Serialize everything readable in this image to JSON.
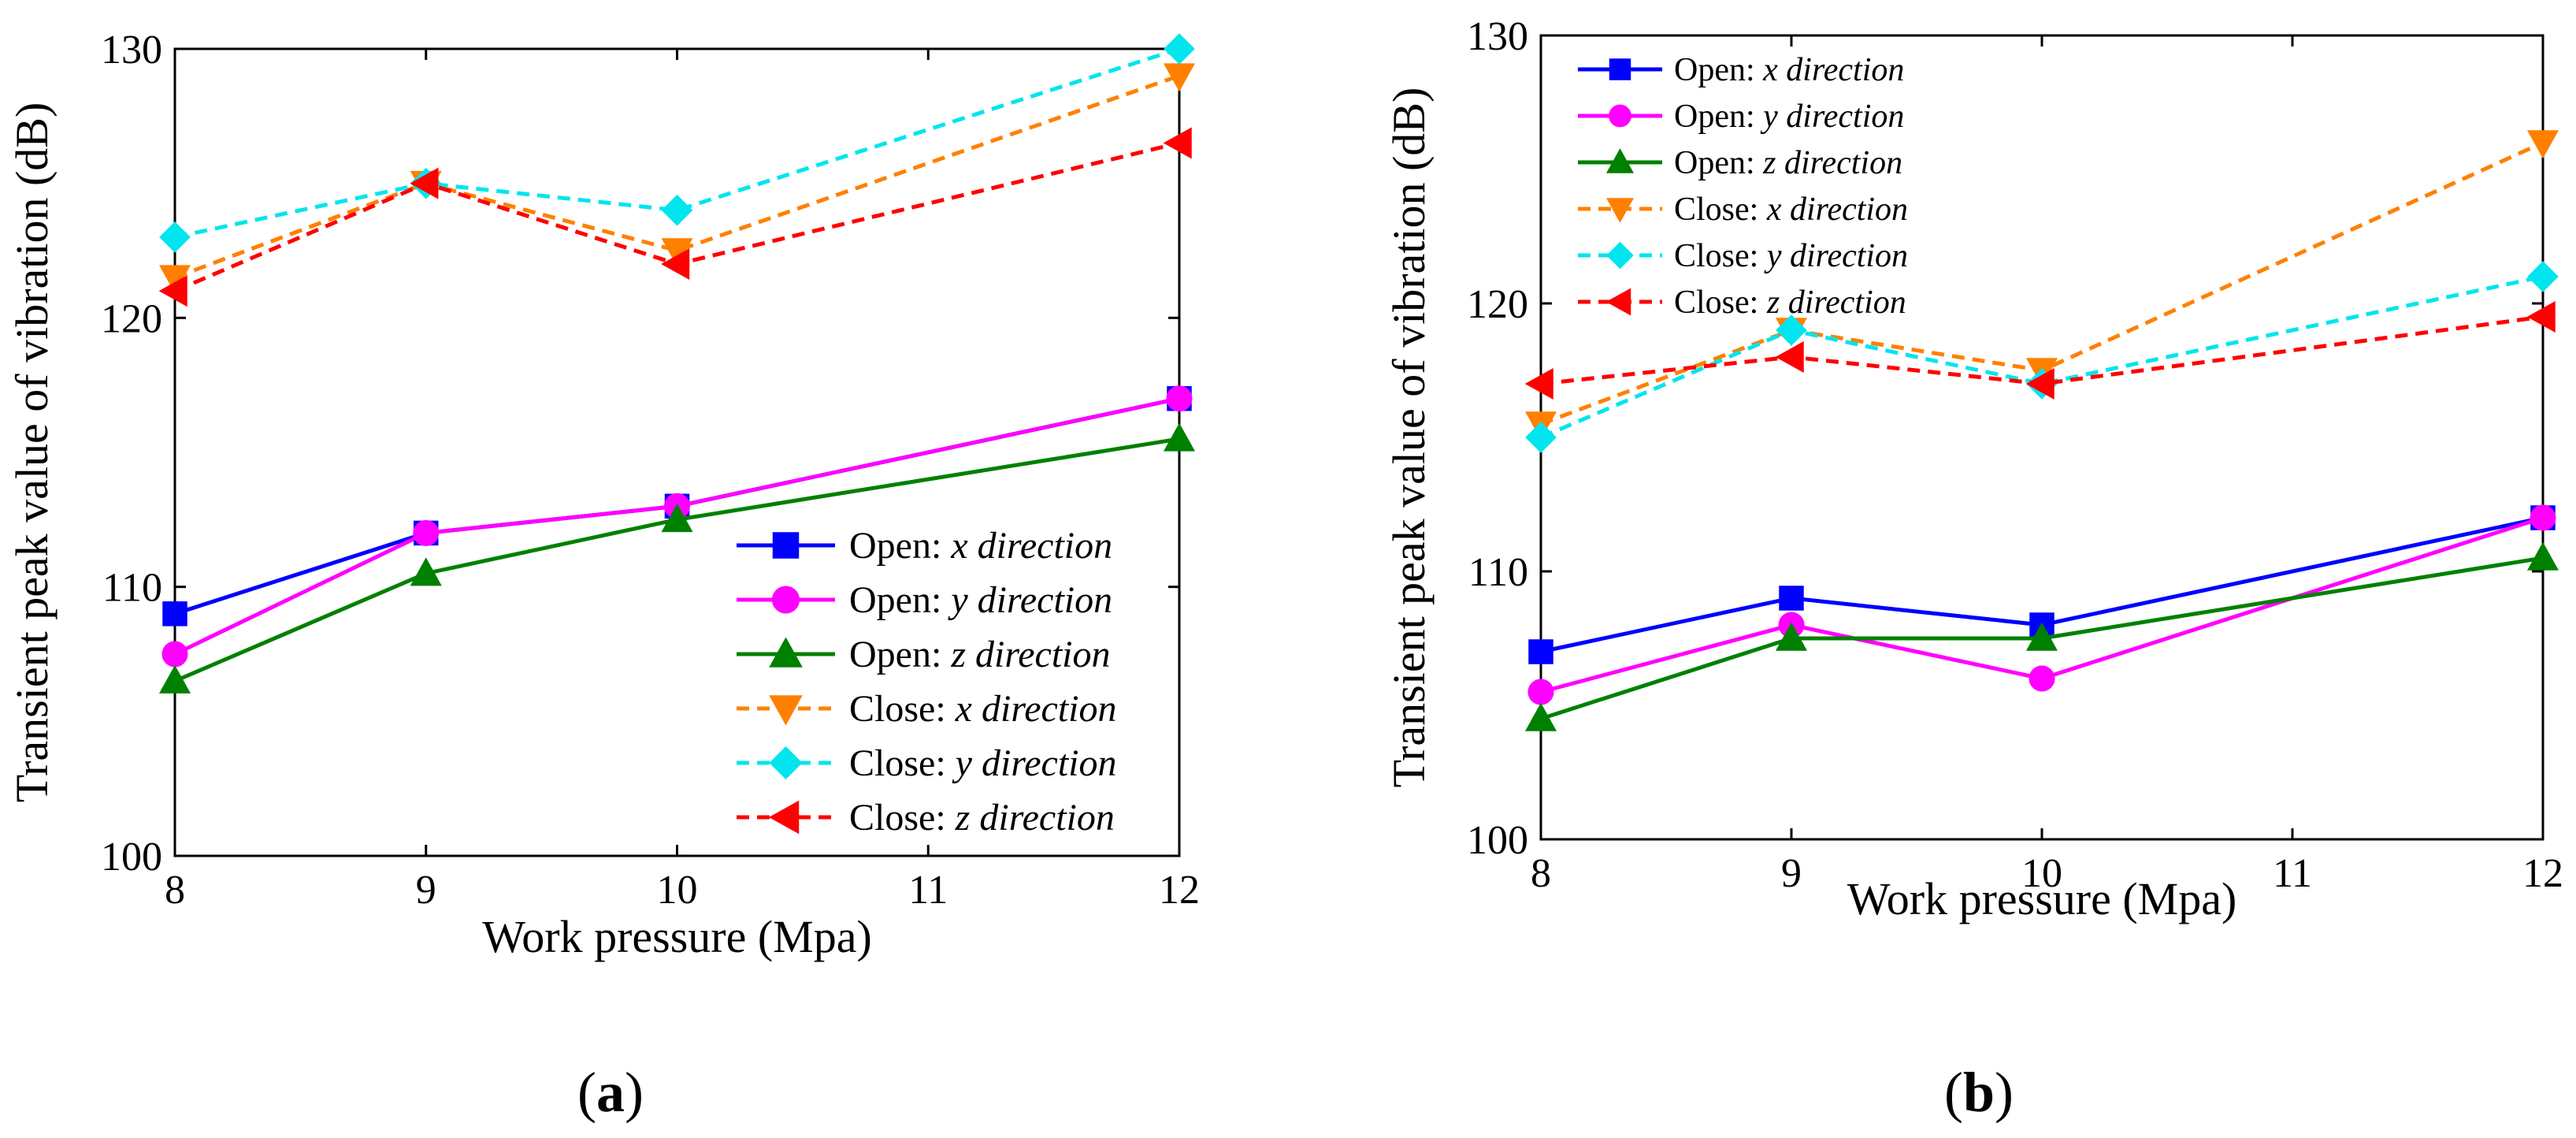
{
  "chart_data": [
    {
      "type": "line",
      "panel_label": "(a)",
      "panel_letter": "a",
      "xlabel": "Work pressure (Mpa)",
      "ylabel": "Transient peak value of vibration  (dB)",
      "xlim": [
        8,
        12
      ],
      "ylim": [
        100,
        130
      ],
      "xticks": [
        8,
        9,
        10,
        11,
        12
      ],
      "yticks": [
        100,
        110,
        120,
        130
      ],
      "x": [
        8,
        9,
        10,
        12
      ],
      "legend_position": "lower-right",
      "series": [
        {
          "name": "Open: x direction",
          "prefix": "Open:",
          "dir": "x direction",
          "color": "#0000ff",
          "dash": "solid",
          "marker": "square",
          "values": [
            109,
            112,
            113,
            117
          ]
        },
        {
          "name": "Open: y direction",
          "prefix": "Open:",
          "dir": "y direction",
          "color": "#ff00ff",
          "dash": "solid",
          "marker": "circle",
          "values": [
            107.5,
            112,
            113,
            117
          ]
        },
        {
          "name": "Open: z direction",
          "prefix": "Open:",
          "dir": "z direction",
          "color": "#008000",
          "dash": "solid",
          "marker": "triangle-up",
          "values": [
            106.5,
            110.5,
            112.5,
            115.5
          ]
        },
        {
          "name": "Close: x direction",
          "prefix": "Close:",
          "dir": "x direction",
          "color": "#ff8000",
          "dash": "dashed",
          "marker": "triangle-down",
          "values": [
            121.5,
            125,
            122.5,
            129
          ]
        },
        {
          "name": "Close: y direction",
          "prefix": "Close:",
          "dir": "y direction",
          "color": "#00e5ee",
          "dash": "dashed",
          "marker": "diamond",
          "values": [
            123,
            125,
            124,
            130
          ]
        },
        {
          "name": "Close: z direction",
          "prefix": "Close:",
          "dir": "z direction",
          "color": "#ff0000",
          "dash": "dashed",
          "marker": "triangle-left",
          "values": [
            121,
            125,
            122,
            126.5
          ]
        }
      ]
    },
    {
      "type": "line",
      "panel_label": "(b)",
      "panel_letter": "b",
      "xlabel": "Work pressure (Mpa)",
      "ylabel": "Transient peak value of vibration  (dB)",
      "xlim": [
        8,
        12
      ],
      "ylim": [
        100,
        130
      ],
      "xticks": [
        8,
        9,
        10,
        11,
        12
      ],
      "yticks": [
        100,
        110,
        120,
        130
      ],
      "x": [
        8,
        9,
        10,
        12
      ],
      "legend_position": "top-left",
      "series": [
        {
          "name": "Open: x direction",
          "prefix": "Open:",
          "dir": "x direction",
          "color": "#0000ff",
          "dash": "solid",
          "marker": "square",
          "values": [
            107,
            109,
            108,
            112
          ]
        },
        {
          "name": "Open: y direction",
          "prefix": "Open:",
          "dir": "y direction",
          "color": "#ff00ff",
          "dash": "solid",
          "marker": "circle",
          "values": [
            105.5,
            108,
            106,
            112
          ]
        },
        {
          "name": "Open: z direction",
          "prefix": "Open:",
          "dir": "z direction",
          "color": "#008000",
          "dash": "solid",
          "marker": "triangle-up",
          "values": [
            104.5,
            107.5,
            107.5,
            110.5
          ]
        },
        {
          "name": "Close: x direction",
          "prefix": "Close:",
          "dir": "x direction",
          "color": "#ff8000",
          "dash": "dashed",
          "marker": "triangle-down",
          "values": [
            115.5,
            119,
            117.5,
            126
          ]
        },
        {
          "name": "Close: y direction",
          "prefix": "Close:",
          "dir": "y direction",
          "color": "#00e5ee",
          "dash": "dashed",
          "marker": "diamond",
          "values": [
            115,
            119,
            117,
            121
          ]
        },
        {
          "name": "Close: z direction",
          "prefix": "Close:",
          "dir": "z direction",
          "color": "#ff0000",
          "dash": "dashed",
          "marker": "triangle-left",
          "values": [
            117,
            118,
            117,
            119.5
          ]
        }
      ]
    }
  ]
}
